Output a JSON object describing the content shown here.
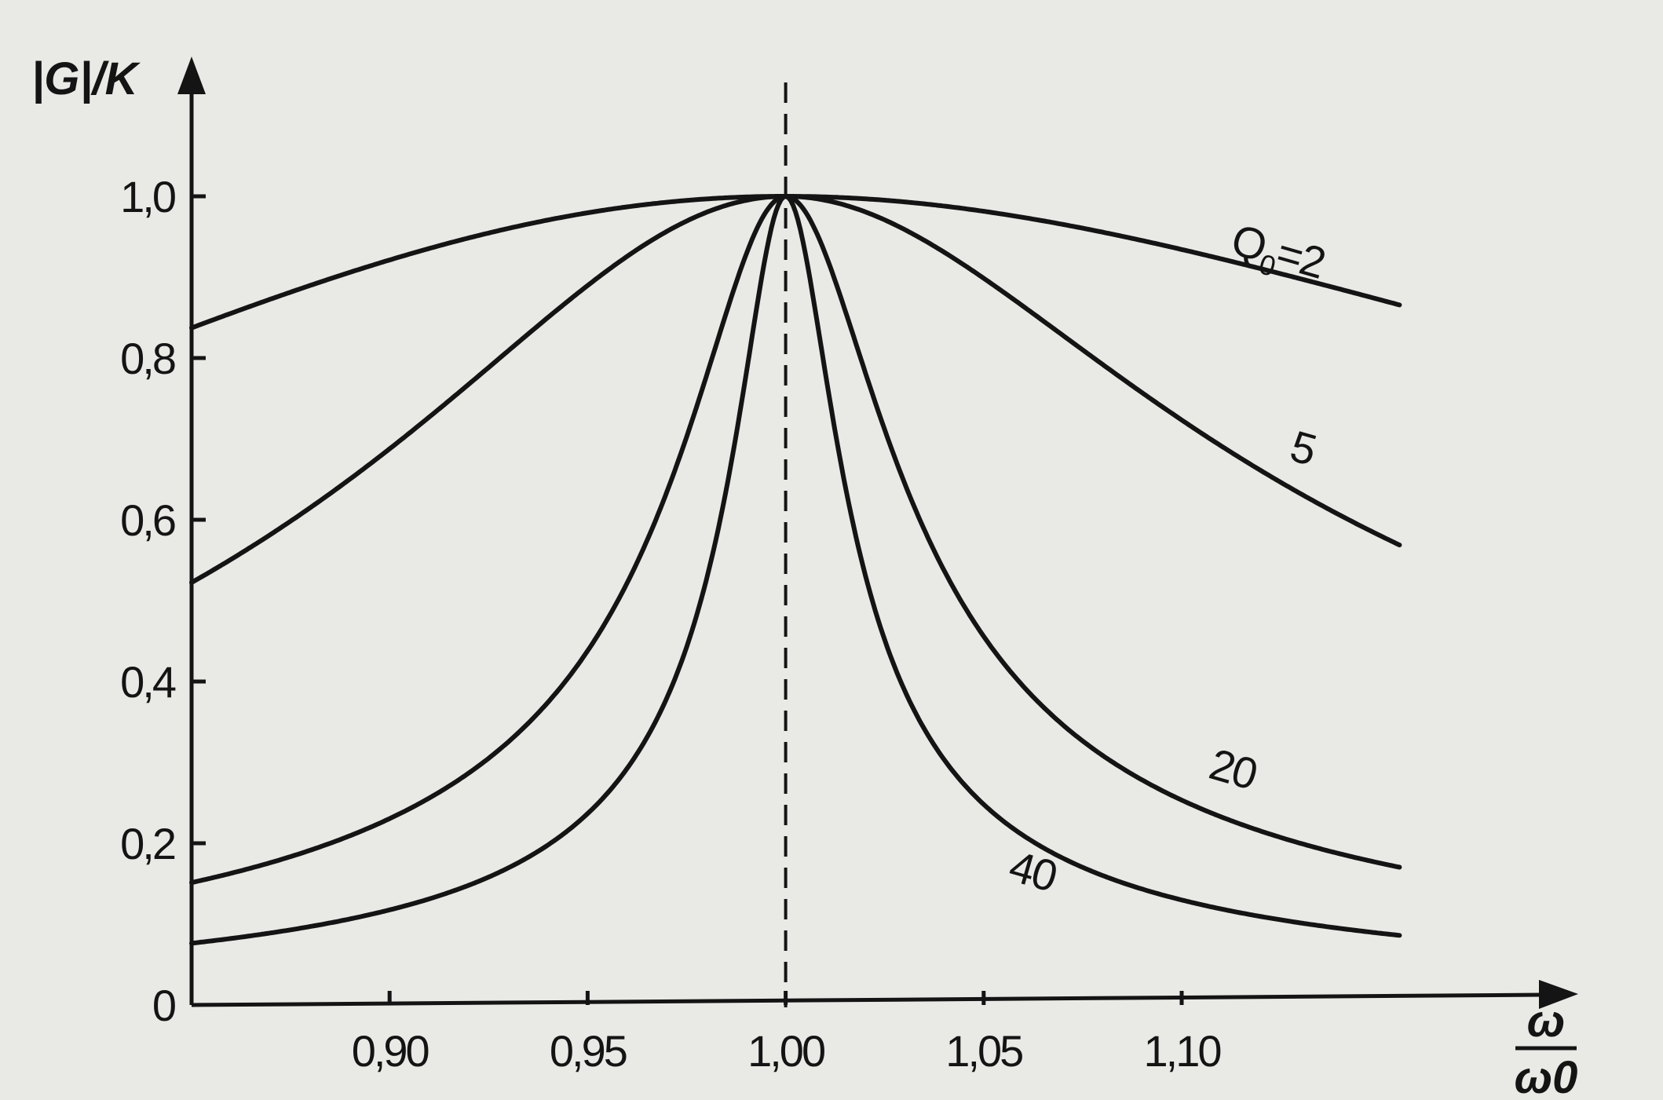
{
  "chart_data": {
    "type": "line",
    "title": "",
    "ylabel": "|G|/K",
    "xlabel_numerator": "ω",
    "xlabel_denominator": "ω0",
    "xlim": [
      0.85,
      1.2
    ],
    "ylim": [
      0,
      1.1
    ],
    "grid": false,
    "legend": "none",
    "x_ticks": [
      {
        "value": 0.9,
        "label": "0,90"
      },
      {
        "value": 0.95,
        "label": "0,95"
      },
      {
        "value": 1.0,
        "label": "1,00"
      },
      {
        "value": 1.05,
        "label": "1,05"
      },
      {
        "value": 1.1,
        "label": "1,10"
      }
    ],
    "y_ticks": [
      {
        "value": 0.0,
        "label": "0"
      },
      {
        "value": 0.2,
        "label": "0,2"
      },
      {
        "value": 0.4,
        "label": "0,4"
      },
      {
        "value": 0.6,
        "label": "0,6"
      },
      {
        "value": 0.8,
        "label": "0,8"
      },
      {
        "value": 1.0,
        "label": "1,0"
      }
    ],
    "reference_line_x": 1.0,
    "series": [
      {
        "name": "Q0=2",
        "label_main": "Q",
        "label_sub": "0",
        "label_rest": "=2",
        "Q": 2
      },
      {
        "name": "5",
        "label_main": "5",
        "Q": 5
      },
      {
        "name": "20",
        "label_main": "20",
        "Q": 20
      },
      {
        "name": "40",
        "label_main": "40",
        "Q": 40
      }
    ],
    "x_range": [
      0.85,
      1.155
    ],
    "colors": {
      "line": "#141414",
      "background": "#e9e9e6"
    }
  }
}
